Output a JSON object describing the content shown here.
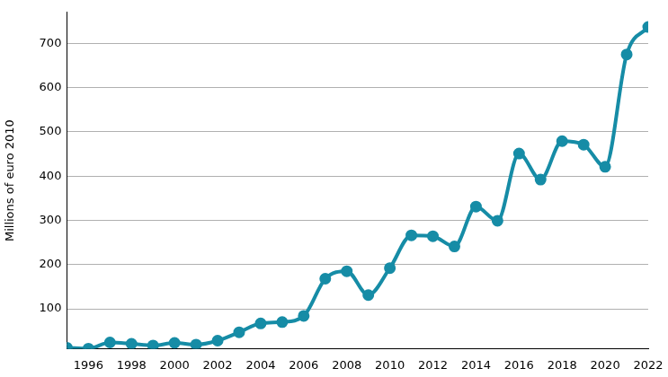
{
  "chart_data": {
    "type": "line",
    "y_label": "Millions of euro 2010",
    "x": [
      1995,
      1996,
      1997,
      1998,
      1999,
      2000,
      2001,
      2002,
      2003,
      2004,
      2005,
      2006,
      2007,
      2008,
      2009,
      2010,
      2011,
      2012,
      2013,
      2014,
      2015,
      2016,
      2017,
      2018,
      2019,
      2020,
      2021,
      2022
    ],
    "values": [
      12,
      10,
      24,
      21,
      17,
      23,
      19,
      28,
      47,
      67,
      70,
      84,
      168,
      185,
      131,
      192,
      266,
      264,
      241,
      331,
      299,
      451,
      392,
      479,
      471,
      421,
      675,
      737
    ],
    "color": "#168ca6",
    "marker": "circle",
    "xlim": [
      1995,
      2022
    ],
    "xticks": [
      1996,
      1998,
      2000,
      2002,
      2004,
      2006,
      2008,
      2010,
      2012,
      2014,
      2016,
      2018,
      2020,
      2022
    ],
    "ylim": [
      10,
      770
    ],
    "yticks": [
      100,
      200,
      300,
      400,
      500,
      600,
      700
    ],
    "grid": true
  }
}
